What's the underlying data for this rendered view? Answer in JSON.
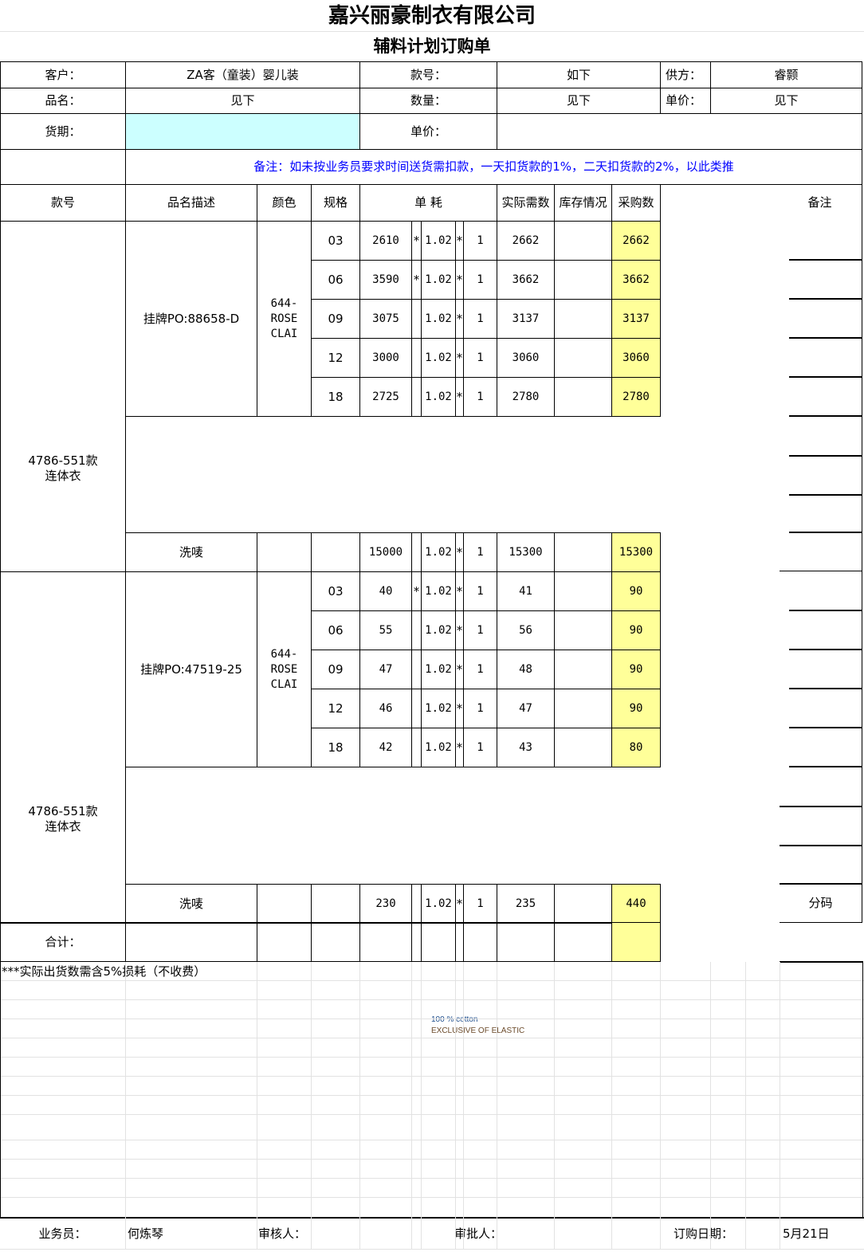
{
  "header": {
    "company": "嘉兴丽豪制衣有限公司",
    "form_title": "辅料计划订购单"
  },
  "info": {
    "customer_label": "客户：",
    "customer": "ZA客（童装）婴儿装",
    "style_label": "款号：",
    "style": "如下",
    "supplier_label": "供方：",
    "supplier": "睿颢",
    "product_label": "品名：",
    "product": "见下",
    "qty_label": "数量：",
    "qty": "见下",
    "unit_price_label": "单价：",
    "unit_price": "见下",
    "delivery_label": "货期：",
    "delivery": "",
    "unit_price2_label": "单价：",
    "unit_price2": "",
    "remark": "备注：如未按业务员要求时间送货需扣款，一天扣货款的1%，二天扣货款的2%，以此类推"
  },
  "columns": {
    "style": "款号",
    "desc": "品名描述",
    "color": "颜色",
    "size": "规格",
    "consumption": "单 耗",
    "actual": "实际需数",
    "stock": "库存情况",
    "purchase": "采购数",
    "remark": "备注"
  },
  "groups": [
    {
      "style": "4786-551款\n连体衣",
      "desc": "挂牌PO:88658-D",
      "color": "644-\nROSE\nCLAI",
      "rows": [
        {
          "size": "03",
          "qty": "2610",
          "s1": "*",
          "factor": "1.02",
          "s2": "*",
          "mult": "1",
          "actual": "2662",
          "stock": "",
          "purchase": "2662"
        },
        {
          "size": "06",
          "qty": "3590",
          "s1": "*",
          "factor": "1.02",
          "s2": "*",
          "mult": "1",
          "actual": "3662",
          "stock": "",
          "purchase": "3662"
        },
        {
          "size": "09",
          "qty": "3075",
          "s1": "",
          "factor": "1.02",
          "s2": "*",
          "mult": "1",
          "actual": "3137",
          "stock": "",
          "purchase": "3137"
        },
        {
          "size": "12",
          "qty": "3000",
          "s1": "",
          "factor": "1.02",
          "s2": "*",
          "mult": "1",
          "actual": "3060",
          "stock": "",
          "purchase": "3060"
        },
        {
          "size": "18",
          "qty": "2725",
          "s1": "",
          "factor": "1.02",
          "s2": "*",
          "mult": "1",
          "actual": "2780",
          "stock": "",
          "purchase": "2780"
        }
      ],
      "label": {
        "desc": "洗唛",
        "size": "",
        "qty": "15000",
        "factor": "1.02",
        "s2": "*",
        "mult": "1",
        "actual": "15300",
        "stock": "",
        "purchase": "15300",
        "remark": ""
      }
    },
    {
      "style": "4786-551款\n连体衣",
      "desc": "挂牌PO:47519-25",
      "color": "644-\nROSE\nCLAI",
      "rows": [
        {
          "size": "03",
          "qty": "40",
          "s1": "*",
          "factor": "1.02",
          "s2": "*",
          "mult": "1",
          "actual": "41",
          "stock": "",
          "purchase": "90"
        },
        {
          "size": "06",
          "qty": "55",
          "s1": "",
          "factor": "1.02",
          "s2": "*",
          "mult": "1",
          "actual": "56",
          "stock": "",
          "purchase": "90"
        },
        {
          "size": "09",
          "qty": "47",
          "s1": "",
          "factor": "1.02",
          "s2": "*",
          "mult": "1",
          "actual": "48",
          "stock": "",
          "purchase": "90"
        },
        {
          "size": "12",
          "qty": "46",
          "s1": "",
          "factor": "1.02",
          "s2": "*",
          "mult": "1",
          "actual": "47",
          "stock": "",
          "purchase": "90"
        },
        {
          "size": "18",
          "qty": "42",
          "s1": "",
          "factor": "1.02",
          "s2": "*",
          "mult": "1",
          "actual": "43",
          "stock": "",
          "purchase": "80"
        }
      ],
      "label": {
        "desc": "洗唛",
        "size": "",
        "qty": "230",
        "factor": "1.02",
        "s2": "*",
        "mult": "1",
        "actual": "235",
        "stock": "",
        "purchase": "440",
        "remark": "分码"
      }
    }
  ],
  "total_label": "合计：",
  "note": "***实际出货数需含5%损耗（不收费）",
  "composition": {
    "line1": "100 % cotton",
    "line2": "EXCLUSIVE OF ELASTIC"
  },
  "footer": {
    "sales_label": "业务员：",
    "sales": "何炼琴",
    "reviewer_label": "审核人：",
    "approver_label": "审批人：",
    "date_label": "订购日期：",
    "date": "5月21日"
  },
  "colors": {
    "delivery_fill": "#ccffff",
    "purchase_fill": "#ffff99",
    "remark_text": "#0000ff"
  }
}
